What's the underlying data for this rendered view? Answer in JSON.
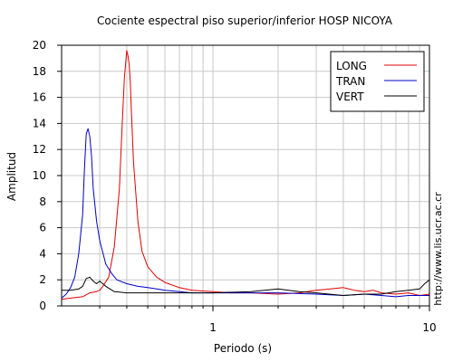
{
  "chart_data": {
    "type": "line",
    "title": "Cociente espectral piso superior/inferior  HOSP NICOYA",
    "xlabel": "Periodo (s)",
    "ylabel": "Amplitud",
    "xscale": "log",
    "xlim": [
      0.2,
      10
    ],
    "ylim": [
      0,
      20
    ],
    "x_ticks": [
      1,
      10
    ],
    "x_tick_labels": [
      "1",
      "10"
    ],
    "y_ticks": [
      0,
      2,
      4,
      6,
      8,
      10,
      12,
      14,
      16,
      18,
      20
    ],
    "y_tick_labels": [
      "0",
      "2",
      "4",
      "6",
      "8",
      "10",
      "12",
      "14",
      "16",
      "18",
      "20"
    ],
    "grid": true,
    "legend_position": "top-right",
    "side_note": "http://www.lis.ucr.ac.cr",
    "series": [
      {
        "name": "LONG",
        "color": "#e00000",
        "x": [
          0.2,
          0.22,
          0.25,
          0.27,
          0.29,
          0.3,
          0.31,
          0.33,
          0.35,
          0.37,
          0.38,
          0.39,
          0.4,
          0.405,
          0.41,
          0.415,
          0.42,
          0.43,
          0.45,
          0.47,
          0.5,
          0.55,
          0.6,
          0.7,
          0.8,
          1.0,
          1.2,
          1.5,
          2.0,
          2.5,
          3.0,
          3.5,
          4.0,
          4.5,
          5.0,
          5.5,
          6.0,
          7.0,
          8.0,
          9.0,
          10.0
        ],
        "values": [
          0.5,
          0.6,
          0.7,
          1.0,
          1.1,
          1.2,
          1.5,
          2.2,
          4.5,
          9.0,
          13.5,
          17.5,
          19.6,
          19.2,
          18.6,
          17.2,
          15.0,
          11.0,
          6.5,
          4.2,
          3.0,
          2.2,
          1.8,
          1.4,
          1.2,
          1.1,
          1.0,
          1.0,
          0.9,
          1.0,
          1.2,
          1.3,
          1.4,
          1.2,
          1.1,
          1.2,
          1.0,
          0.9,
          1.0,
          0.8,
          0.9
        ]
      },
      {
        "name": "TRAN",
        "color": "#0000c8",
        "x": [
          0.2,
          0.21,
          0.22,
          0.23,
          0.24,
          0.25,
          0.255,
          0.26,
          0.265,
          0.27,
          0.275,
          0.28,
          0.29,
          0.3,
          0.32,
          0.34,
          0.36,
          0.4,
          0.45,
          0.5,
          0.55,
          0.6,
          0.7,
          0.8,
          1.0,
          1.5,
          2.0,
          3.0,
          4.0,
          5.0,
          6.0,
          7.0,
          8.0,
          10.0
        ],
        "values": [
          0.6,
          0.9,
          1.4,
          2.2,
          4.0,
          7.0,
          10.5,
          13.2,
          13.6,
          13.0,
          11.5,
          9.0,
          6.5,
          5.0,
          3.2,
          2.5,
          2.0,
          1.7,
          1.5,
          1.4,
          1.3,
          1.2,
          1.1,
          1.0,
          1.0,
          1.0,
          1.0,
          0.9,
          0.8,
          0.9,
          0.8,
          0.7,
          0.8,
          0.8
        ]
      },
      {
        "name": "VERT",
        "color": "#000000",
        "x": [
          0.2,
          0.22,
          0.24,
          0.25,
          0.26,
          0.27,
          0.28,
          0.29,
          0.3,
          0.32,
          0.35,
          0.4,
          0.5,
          0.6,
          0.8,
          1.0,
          1.5,
          2.0,
          2.5,
          3.0,
          4.0,
          5.0,
          6.0,
          7.0,
          8.0,
          9.0,
          9.5,
          10.0
        ],
        "values": [
          1.2,
          1.2,
          1.3,
          1.5,
          2.1,
          2.2,
          1.9,
          1.7,
          1.9,
          1.5,
          1.1,
          1.0,
          1.0,
          1.0,
          1.0,
          1.0,
          1.1,
          1.3,
          1.1,
          1.0,
          0.8,
          0.9,
          0.9,
          1.1,
          1.2,
          1.3,
          1.7,
          2.0
        ]
      }
    ]
  }
}
